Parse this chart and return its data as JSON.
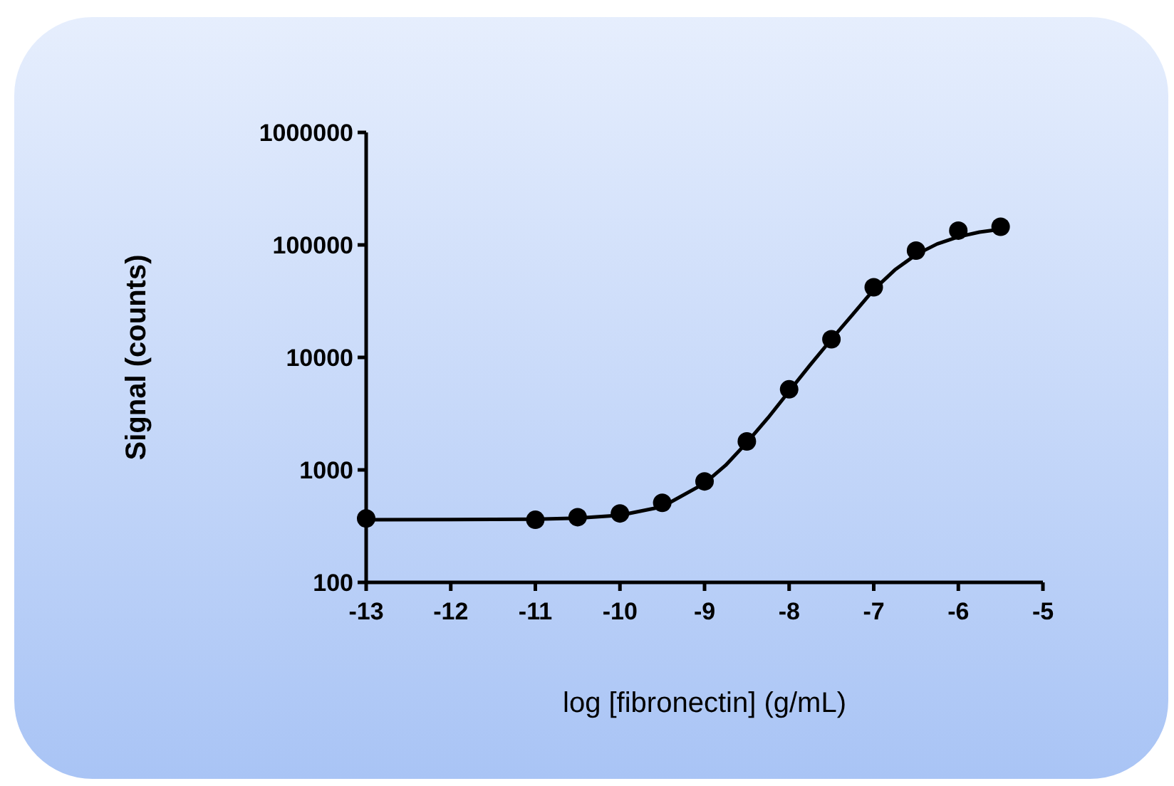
{
  "chart_data": {
    "type": "scatter",
    "xlabel": "log [fibronectin] (g/mL)",
    "ylabel": "Signal (counts)",
    "log": "y",
    "grid": false,
    "xlim": [
      -13,
      -5
    ],
    "xticks": [
      -13,
      -12,
      -11,
      -10,
      -9,
      -8,
      -7,
      -6,
      -5
    ],
    "ylim": [
      100,
      1000000
    ],
    "yticks": [
      100,
      1000,
      10000,
      100000,
      1000000
    ],
    "series": [
      {
        "type": "line",
        "marker": "none",
        "line_style": "solid",
        "color": "#000000",
        "x": [
          -13,
          -12,
          -11,
          -10.5,
          -10,
          -9.5,
          -9,
          -8.75,
          -8.5,
          -8.25,
          -8,
          -7.75,
          -7.5,
          -7.25,
          -7,
          -6.75,
          -6.5,
          -6.25,
          -6,
          -5.75,
          -5.5
        ],
        "values": [
          360,
          362,
          365,
          372,
          395,
          470,
          760,
          1100,
          1750,
          2900,
          5000,
          8600,
          14500,
          24000,
          40000,
          60000,
          82000,
          102000,
          118000,
          130000,
          138000
        ]
      },
      {
        "marker": "circle",
        "color": "#000000",
        "x": [
          -13,
          -11,
          -10.5,
          -10,
          -9.5,
          -9,
          -8.5,
          -8,
          -7.5,
          -7,
          -6.5,
          -6,
          -5.5
        ],
        "values": [
          370,
          360,
          380,
          410,
          510,
          790,
          1790,
          5200,
          14500,
          42000,
          89000,
          134000,
          145000
        ]
      }
    ]
  }
}
